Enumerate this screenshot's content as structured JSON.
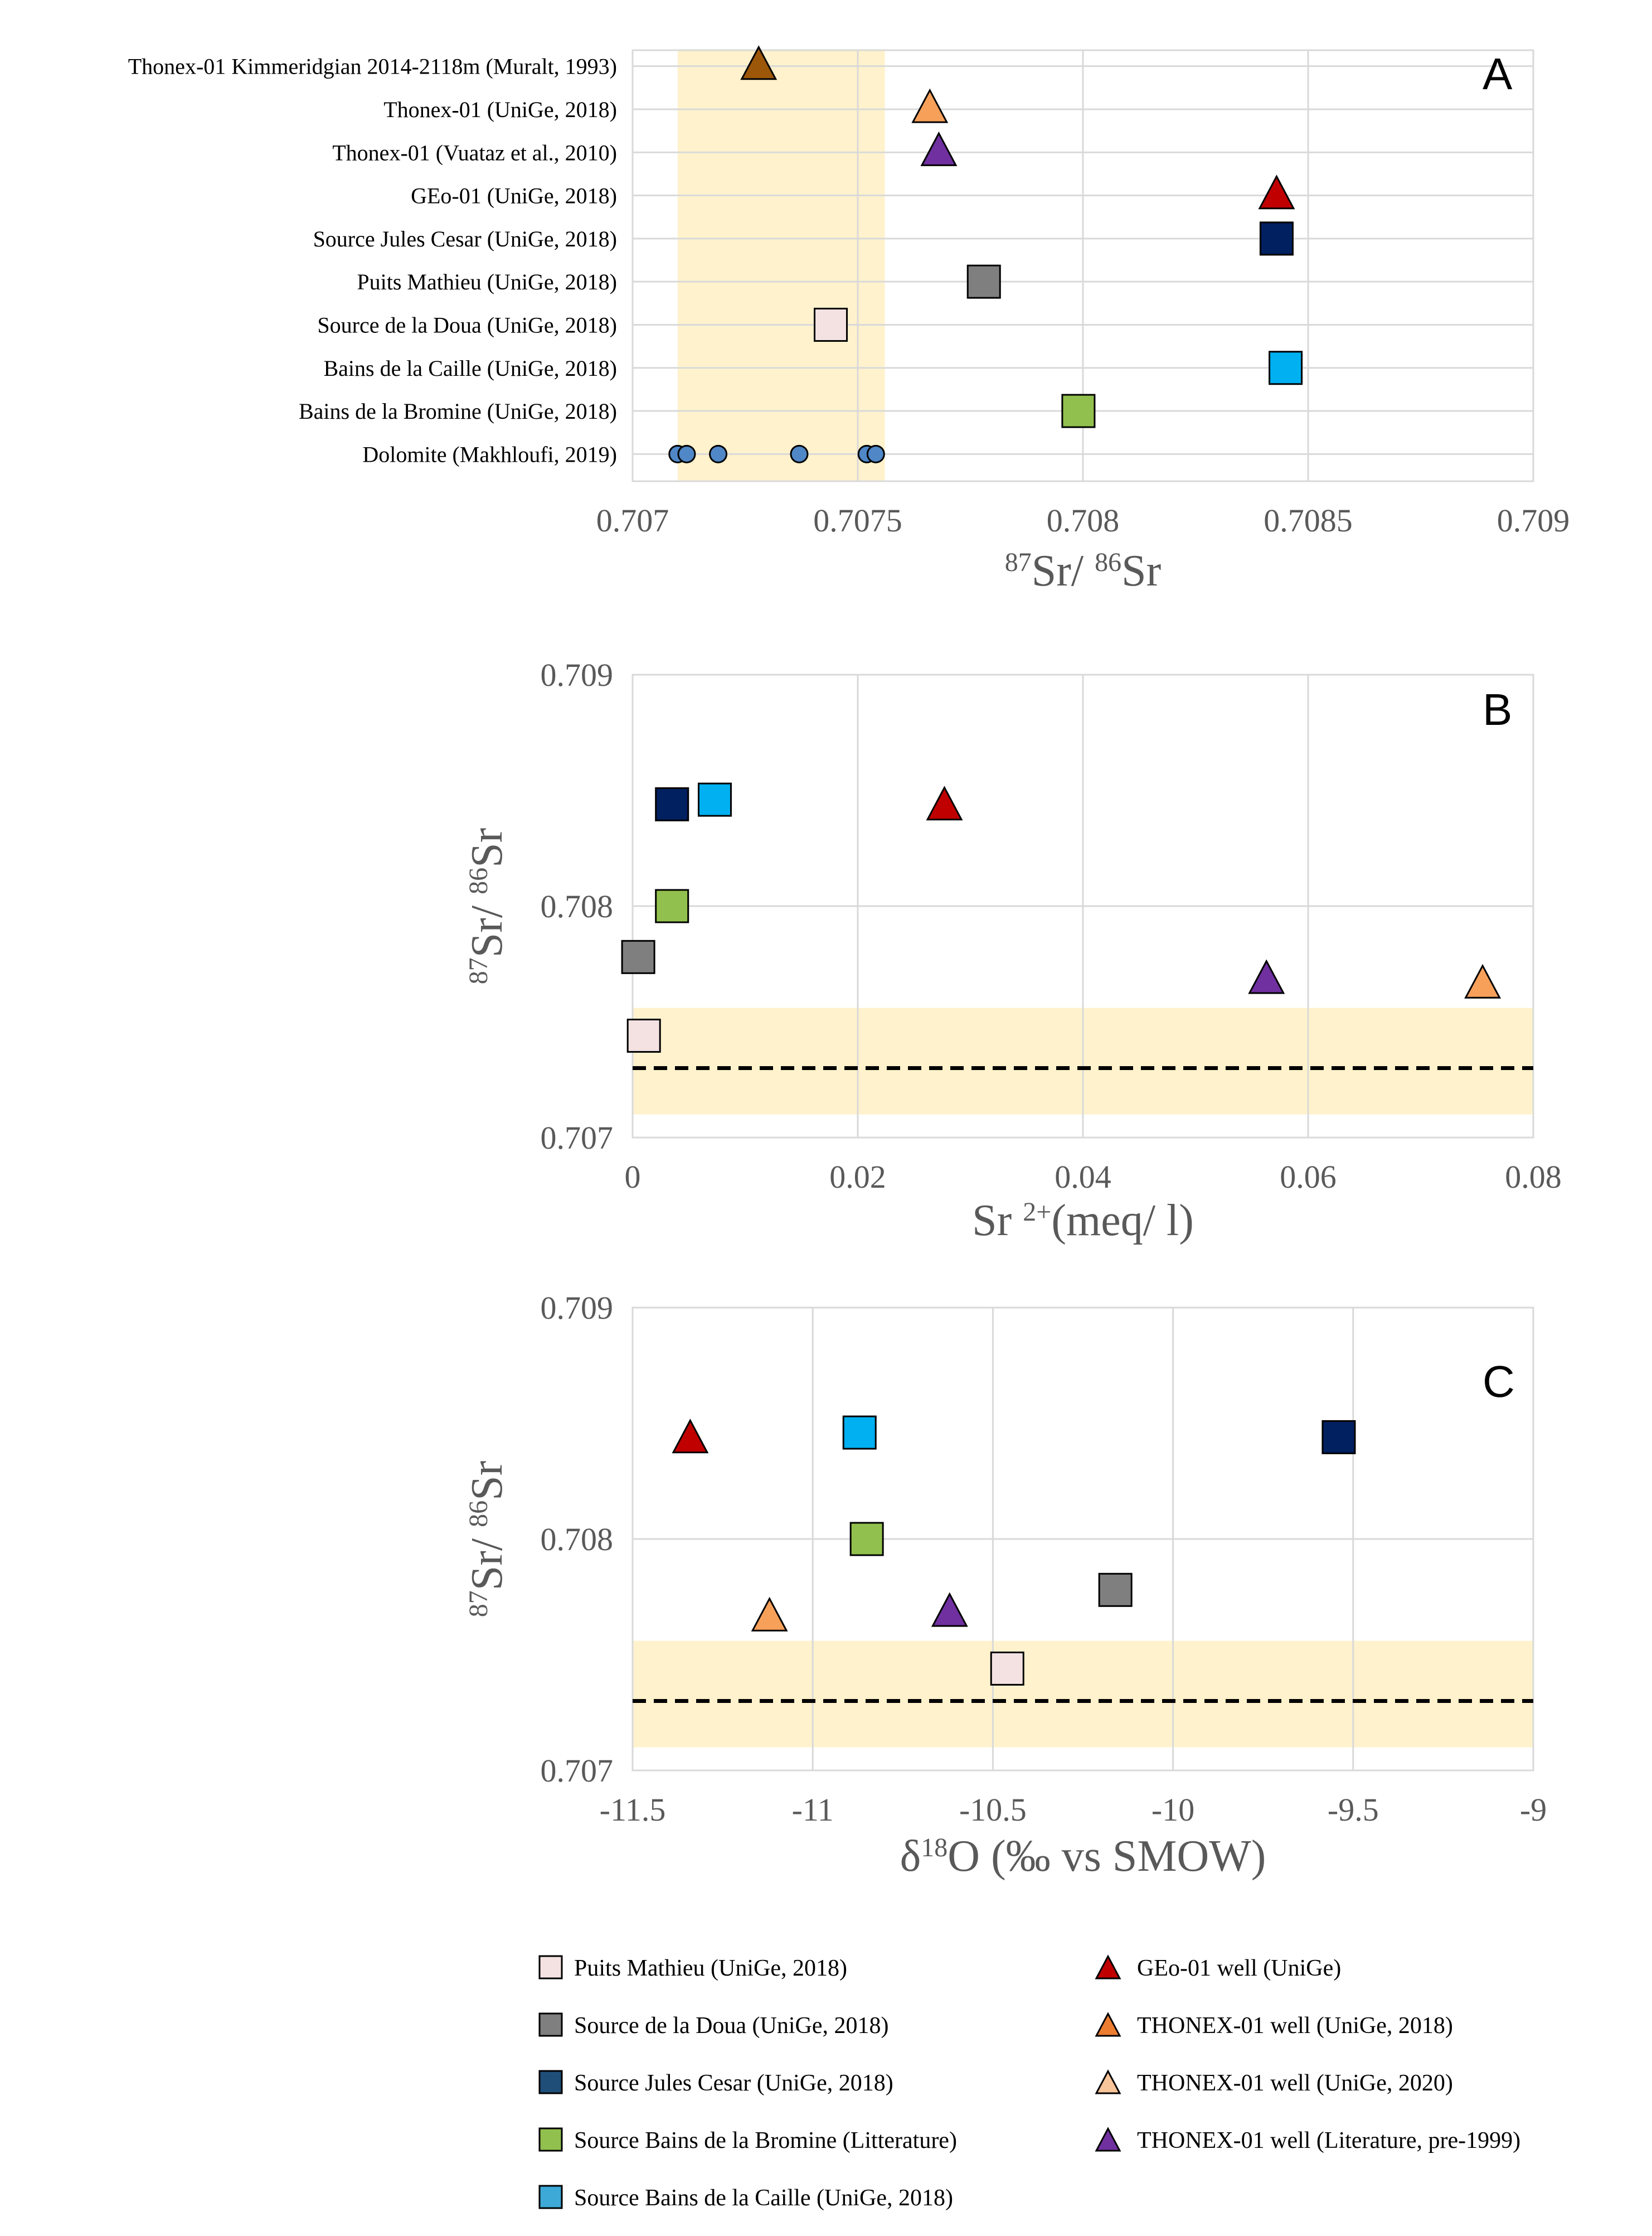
{
  "chart_data": [
    {
      "panel": "A",
      "type": "scatter",
      "orientation": "horizontal-categories",
      "xlabel_base": "Sr/ ",
      "xlabel_sup1": "87",
      "xlabel_sup2": "86",
      "xlabel_tail": "Sr",
      "xlim": [
        0.707,
        0.709
      ],
      "xticks": [
        0.707,
        0.7075,
        0.708,
        0.7085,
        0.709
      ],
      "xtick_labels": [
        "0.707",
        "0.7075",
        "0.708",
        "0.7085",
        "0.709"
      ],
      "band": [
        0.7071,
        0.70756
      ],
      "categories": [
        "Thonex-01 Kimmeridgian 2014-2118m (Muralt, 1993)",
        "Thonex-01 (UniGe, 2018)",
        "Thonex-01 (Vuataz et al., 2010)",
        "GEo-01 (UniGe, 2018)",
        "Source Jules Cesar (UniGe, 2018)",
        "Puits Mathieu (UniGe, 2018)",
        "Source de la Doua (UniGe, 2018)",
        "Bains de la Caille (UniGe, 2018)",
        "Bains de la Bromine (UniGe, 2018)",
        "Dolomite (Makhloufi, 2019)"
      ],
      "points": [
        {
          "category": 0,
          "x": 0.70728,
          "marker": "triangle",
          "color": "#9c5709"
        },
        {
          "category": 1,
          "x": 0.70766,
          "marker": "triangle",
          "color": "#f7a05a"
        },
        {
          "category": 2,
          "x": 0.70768,
          "marker": "triangle",
          "color": "#7030a0"
        },
        {
          "category": 3,
          "x": 0.70843,
          "marker": "triangle",
          "color": "#c00000"
        },
        {
          "category": 4,
          "x": 0.70843,
          "marker": "square",
          "color": "#002060"
        },
        {
          "category": 5,
          "x": 0.70778,
          "marker": "square",
          "color": "#7f7f7f"
        },
        {
          "category": 6,
          "x": 0.70744,
          "marker": "square",
          "color": "#f4e2e2"
        },
        {
          "category": 7,
          "x": 0.70845,
          "marker": "square",
          "color": "#00b0f0"
        },
        {
          "category": 8,
          "x": 0.70799,
          "marker": "square",
          "color": "#92c04e"
        },
        {
          "category": 9,
          "x": 0.7071,
          "marker": "circle",
          "color": "#4f87c7"
        },
        {
          "category": 9,
          "x": 0.70712,
          "marker": "circle",
          "color": "#4f87c7"
        },
        {
          "category": 9,
          "x": 0.70719,
          "marker": "circle",
          "color": "#4f87c7"
        },
        {
          "category": 9,
          "x": 0.70737,
          "marker": "circle",
          "color": "#4f87c7"
        },
        {
          "category": 9,
          "x": 0.70752,
          "marker": "circle",
          "color": "#4f87c7"
        },
        {
          "category": 9,
          "x": 0.70754,
          "marker": "circle",
          "color": "#4f87c7"
        }
      ]
    },
    {
      "panel": "B",
      "type": "scatter",
      "xlabel_base": "Sr ",
      "xlabel_sup": "2+",
      "xlabel_tail": "(meq/ l)",
      "ylabel_sup1": "87",
      "ylabel_mid": "Sr/ ",
      "ylabel_sup2": "86",
      "ylabel_tail": "Sr",
      "xlim": [
        0,
        0.08
      ],
      "ylim": [
        0.707,
        0.709
      ],
      "xticks": [
        0,
        0.02,
        0.04,
        0.06,
        0.08
      ],
      "xtick_labels": [
        "0",
        "0.02",
        "0.04",
        "0.06",
        "0.08"
      ],
      "yticks": [
        0.707,
        0.708,
        0.709
      ],
      "ytick_labels": [
        "0.707",
        "0.708",
        "0.709"
      ],
      "band": [
        0.7071,
        0.70756
      ],
      "dashed_line": 0.7073,
      "points": [
        {
          "x": 0.0035,
          "y": 0.70844,
          "marker": "square",
          "color": "#002060"
        },
        {
          "x": 0.0073,
          "y": 0.70846,
          "marker": "square",
          "color": "#00b0f0"
        },
        {
          "x": 0.0277,
          "y": 0.70843,
          "marker": "triangle",
          "color": "#c00000"
        },
        {
          "x": 0.0035,
          "y": 0.708,
          "marker": "square",
          "color": "#92c04e"
        },
        {
          "x": 0.0005,
          "y": 0.70778,
          "marker": "square",
          "color": "#7f7f7f"
        },
        {
          "x": 0.0563,
          "y": 0.70768,
          "marker": "triangle",
          "color": "#7030a0"
        },
        {
          "x": 0.0755,
          "y": 0.70766,
          "marker": "triangle",
          "color": "#f7a05a"
        },
        {
          "x": 0.001,
          "y": 0.70744,
          "marker": "square",
          "color": "#f4e2e2"
        }
      ]
    },
    {
      "panel": "C",
      "type": "scatter",
      "xlabel_base": "δ",
      "xlabel_sup": "18",
      "xlabel_tail": "O (‰ vs SMOW)",
      "ylabel_sup1": "87",
      "ylabel_mid": "Sr/ ",
      "ylabel_sup2": "86",
      "ylabel_tail": "Sr",
      "xlim": [
        -11.5,
        -9
      ],
      "ylim": [
        0.707,
        0.709
      ],
      "xticks": [
        -11.5,
        -11,
        -10.5,
        -10,
        -9.5,
        -9
      ],
      "xtick_labels": [
        "-11.5",
        "-11",
        "-10.5",
        "-10",
        "-9.5",
        "-9"
      ],
      "yticks": [
        0.707,
        0.708,
        0.709
      ],
      "ytick_labels": [
        "0.707",
        "0.708",
        "0.709"
      ],
      "band": [
        0.7071,
        0.70756
      ],
      "dashed_line": 0.7073,
      "points": [
        {
          "x": -11.34,
          "y": 0.70843,
          "marker": "triangle",
          "color": "#c00000"
        },
        {
          "x": -10.87,
          "y": 0.70846,
          "marker": "square",
          "color": "#00b0f0"
        },
        {
          "x": -9.54,
          "y": 0.70844,
          "marker": "square",
          "color": "#002060"
        },
        {
          "x": -10.85,
          "y": 0.708,
          "marker": "square",
          "color": "#92c04e"
        },
        {
          "x": -10.16,
          "y": 0.70778,
          "marker": "square",
          "color": "#7f7f7f"
        },
        {
          "x": -11.12,
          "y": 0.70766,
          "marker": "triangle",
          "color": "#f7a05a"
        },
        {
          "x": -10.62,
          "y": 0.70768,
          "marker": "triangle",
          "color": "#7030a0"
        },
        {
          "x": -10.46,
          "y": 0.70744,
          "marker": "square",
          "color": "#f4e2e2"
        }
      ]
    }
  ],
  "band_color": "#fff2cc",
  "legend": [
    {
      "label": "Puits Mathieu (UniGe, 2018)",
      "marker": "square",
      "color": "#f4e2e2"
    },
    {
      "label": "Source de la Doua (UniGe, 2018)",
      "marker": "square",
      "color": "#7f7f7f"
    },
    {
      "label": "Source Jules Cesar (UniGe, 2018)",
      "marker": "square",
      "color": "#1f4e79"
    },
    {
      "label": "Source Bains de la Bromine (Litterature)",
      "marker": "square",
      "color": "#92c04e"
    },
    {
      "label": "Source Bains de la Caille (UniGe, 2018)",
      "marker": "square",
      "color": "#3ca9d6"
    },
    {
      "label": "GEo-01 well (UniGe)",
      "marker": "triangle",
      "color": "#c00000"
    },
    {
      "label": "THONEX-01 well (UniGe, 2018)",
      "marker": "triangle",
      "color": "#ed7d31"
    },
    {
      "label": "THONEX-01 well (UniGe, 2020)",
      "marker": "triangle",
      "color": "#f8c49a"
    },
    {
      "label": "THONEX-01 well (Literature, pre-1999)",
      "marker": "triangle",
      "color": "#7030a0"
    }
  ]
}
